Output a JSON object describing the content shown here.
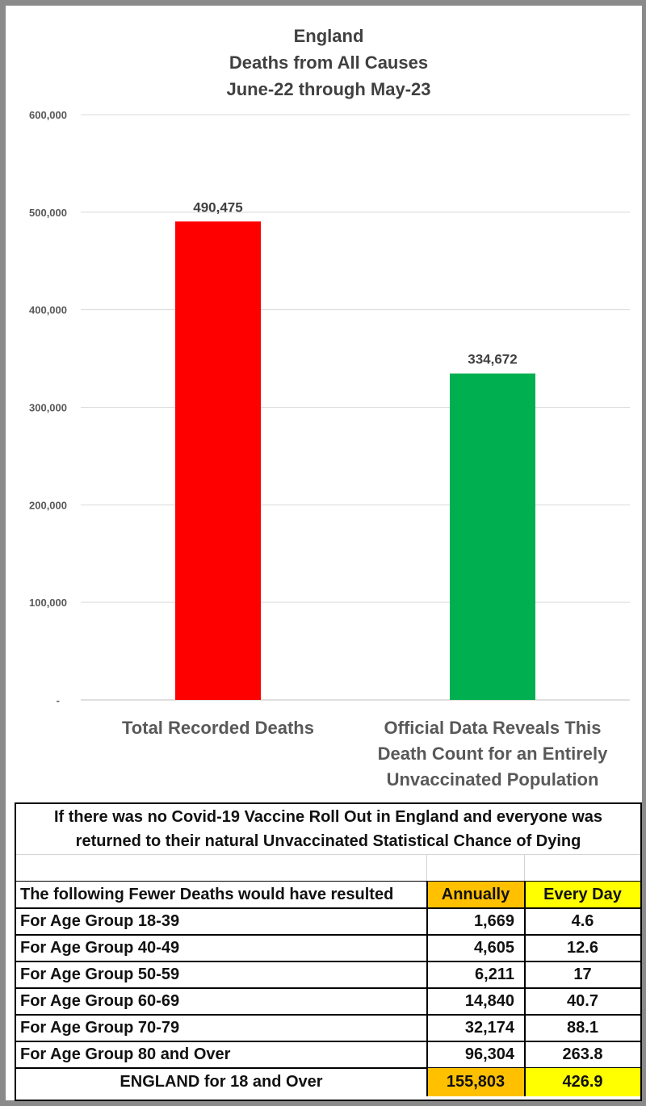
{
  "chart_data": {
    "type": "bar",
    "title": [
      "England",
      "Deaths from All Causes",
      "June-22 through May-23"
    ],
    "categories": [
      [
        "Total Recorded Deaths"
      ],
      [
        "Official Data Reveals This",
        "Death Count for an Entirely",
        "Unvaccinated Population"
      ]
    ],
    "values": [
      490475,
      334672
    ],
    "value_labels": [
      "490,475",
      "334,672"
    ],
    "colors": [
      "#ff0000",
      "#00b050"
    ],
    "ylim": [
      0,
      600000
    ],
    "yticks": [
      0,
      100000,
      200000,
      300000,
      400000,
      500000,
      600000
    ],
    "ytick_labels": [
      "-",
      "100,000",
      "200,000",
      "300,000",
      "400,000",
      "500,000",
      "600,000"
    ],
    "grid": true,
    "xlabel": "",
    "ylabel": ""
  },
  "table": {
    "note_line1": "If there was no Covid-19 Vaccine Roll Out in England and everyone was",
    "note_line2": "returned to their natural Unvaccinated Statistical Chance of Dying",
    "header": {
      "label": "The following Fewer Deaths would have resulted",
      "annually": "Annually",
      "every_day": "Every Day"
    },
    "rows": [
      {
        "label": "For Age Group 18-39",
        "annually": "1,669",
        "every_day": "4.6"
      },
      {
        "label": "For Age Group 40-49",
        "annually": "4,605",
        "every_day": "12.6"
      },
      {
        "label": "For Age Group 50-59",
        "annually": "6,211",
        "every_day": "17"
      },
      {
        "label": "For Age Group 60-69",
        "annually": "14,840",
        "every_day": "40.7"
      },
      {
        "label": "For Age Group 70-79",
        "annually": "32,174",
        "every_day": "88.1"
      },
      {
        "label": "For Age Group 80 and Over",
        "annually": "96,304",
        "every_day": "263.8"
      }
    ],
    "total": {
      "label": "ENGLAND for 18 and Over",
      "annually": "155,803",
      "every_day": "426.9"
    },
    "colors": {
      "annually": "#ffc000",
      "every_day": "#ffff00"
    }
  }
}
